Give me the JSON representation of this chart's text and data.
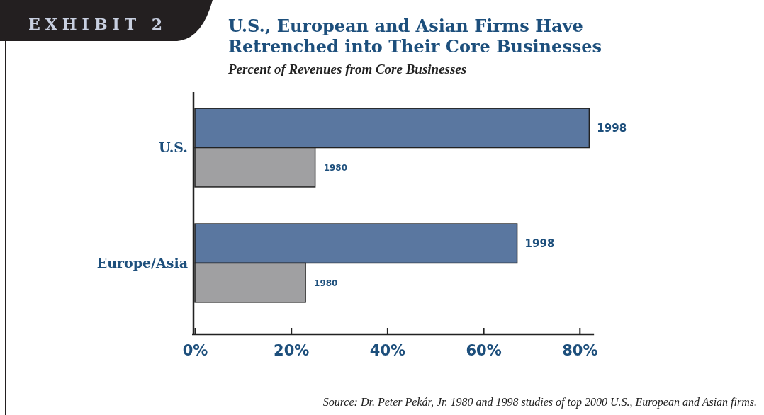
{
  "chart_data": {
    "type": "bar",
    "orientation": "horizontal",
    "title": "U.S., European and Asian Firms Have Retrenched into Their Core Businesses",
    "subtitle": "Percent of Revenues from Core Businesses",
    "categories": [
      "U.S.",
      "Europe/Asia"
    ],
    "series": [
      {
        "name": "1998",
        "color": "#5a77a0",
        "values": [
          82,
          67
        ]
      },
      {
        "name": "1980",
        "color": "#a0a0a2",
        "values": [
          25,
          23
        ]
      }
    ],
    "xlim": [
      0,
      83
    ],
    "xticks": [
      {
        "value": 0,
        "label": "0%"
      },
      {
        "value": 20,
        "label": "20%"
      },
      {
        "value": 40,
        "label": "40%"
      },
      {
        "value": 60,
        "label": "60%"
      },
      {
        "value": 80,
        "label": "80%"
      }
    ],
    "grid": false,
    "annotations": [
      "EXHIBIT 2",
      "Source: Dr. Peter Pekár, Jr. 1980 and 1998 studies of top 2000 U.S., European and Asian firms."
    ]
  }
}
